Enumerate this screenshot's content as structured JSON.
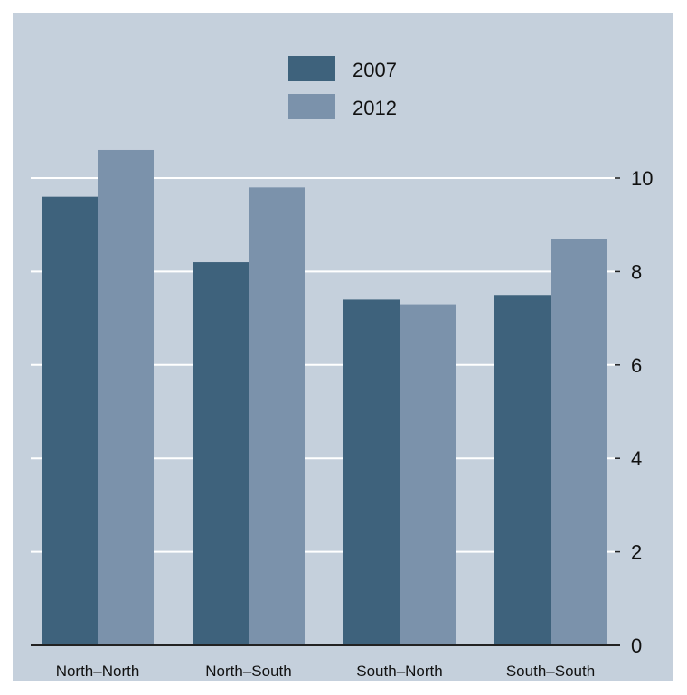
{
  "colors": {
    "background": "#c5d0dc",
    "gridline": "#ffffff",
    "axis": "#222222",
    "series_2007": "#3e627c",
    "series_2012": "#7b92ab"
  },
  "chart_data": {
    "type": "bar",
    "title": "",
    "xlabel": "",
    "ylabel": "",
    "categories": [
      "North–North",
      "North–South",
      "South–North",
      "South–South"
    ],
    "series": [
      {
        "name": "2007",
        "values": [
          9.6,
          8.2,
          7.4,
          7.5
        ]
      },
      {
        "name": "2012",
        "values": [
          10.6,
          9.8,
          7.3,
          8.7
        ]
      }
    ],
    "ylim": [
      0,
      12
    ],
    "yticks": [
      0,
      2,
      4,
      6,
      8,
      10
    ],
    "y_axis_side": "right",
    "grid": true,
    "legend_position": "top-center"
  }
}
